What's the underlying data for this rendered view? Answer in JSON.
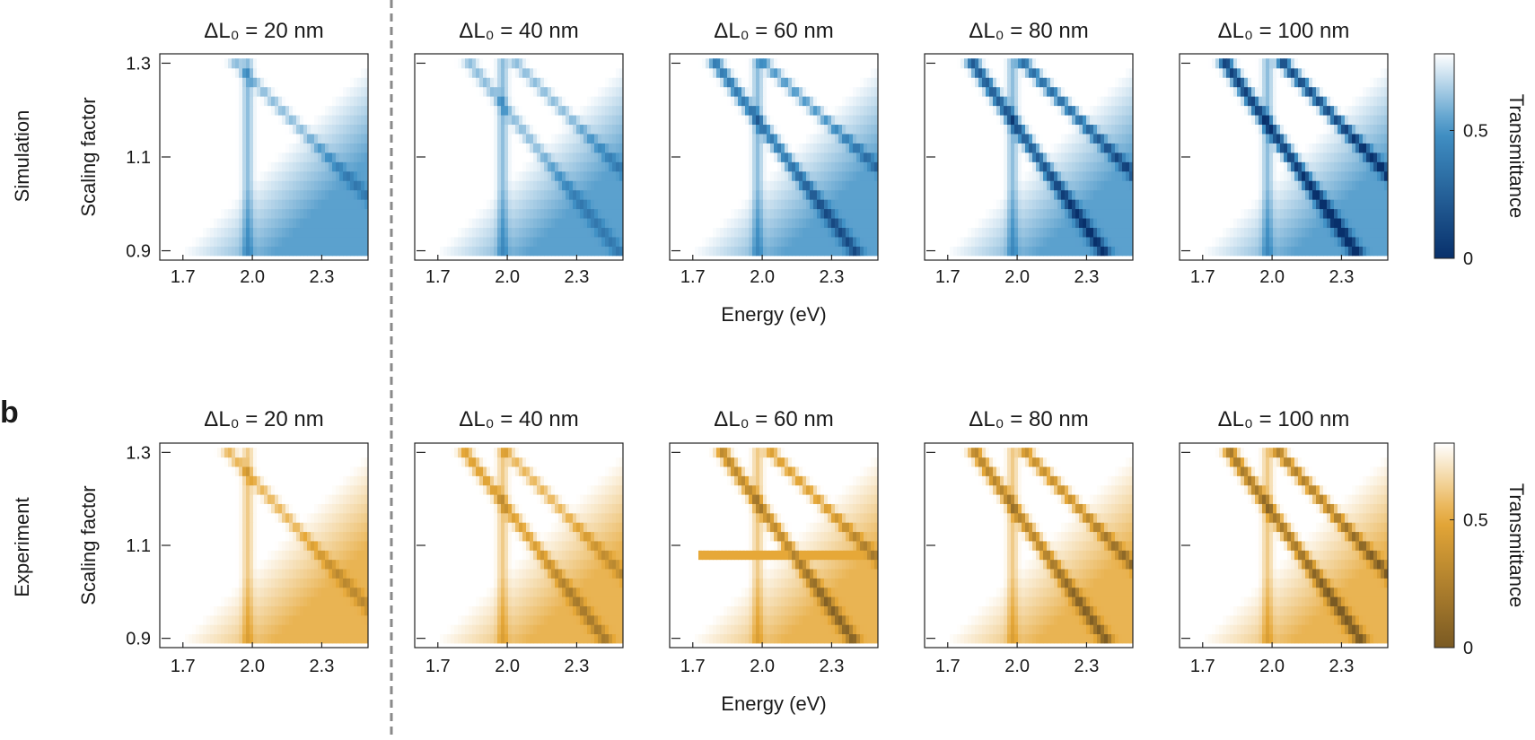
{
  "figure": {
    "panel_b_label": "b",
    "divider_style": "dashed-vertical"
  },
  "chart_data": [
    {
      "type": "heatmap",
      "row": "Simulation",
      "row_label": "Simulation",
      "colormap": "blue",
      "colors": {
        "low": "#08306b",
        "mid": "#4292c6",
        "high": "#ffffff"
      },
      "ylabel": "Scaling factor",
      "xlabel": "Energy (eV)",
      "colorbar_label": "Transmittance",
      "colorbar_ticks": [
        "0",
        "0.5"
      ],
      "colorbar_range": [
        0,
        0.8
      ],
      "xlim": [
        1.6,
        2.5
      ],
      "ylim": [
        0.88,
        1.32
      ],
      "xticks": [
        "1.7",
        "2.0",
        "2.3"
      ],
      "yticks": [
        "0.9",
        "1.1",
        "1.3"
      ],
      "scaling_factors": [
        0.9,
        0.92,
        0.94,
        0.96,
        0.98,
        1.0,
        1.02,
        1.04,
        1.06,
        1.08,
        1.1,
        1.12,
        1.14,
        1.16,
        1.18,
        1.2,
        1.22,
        1.24,
        1.26,
        1.28,
        1.3
      ],
      "exciton_energy_eV": 1.98,
      "panels": [
        {
          "title": "ΔL₀ = 20 nm",
          "delta_L0_nm": 20,
          "modes": [
            {
              "energy_at_1_3": 1.93,
              "slope": 2.0,
              "min_T": 0.62
            }
          ],
          "band_energy_at_1_3": 2.17,
          "band_min_T": 0.42
        },
        {
          "title": "ΔL₀ = 40 nm",
          "delta_L0_nm": 40,
          "modes": [
            {
              "energy_at_1_3": 1.84,
              "slope": 1.6,
              "min_T": 0.62
            },
            {
              "energy_at_1_3": 2.04,
              "slope": 2.0,
              "min_T": 0.62
            }
          ],
          "band_energy_at_1_3": 2.12,
          "band_min_T": 0.46
        },
        {
          "title": "ΔL₀ = 60 nm",
          "delta_L0_nm": 60,
          "modes": [
            {
              "energy_at_1_3": 1.8,
              "slope": 1.5,
              "min_T": 0.38
            },
            {
              "energy_at_1_3": 2.01,
              "slope": 2.2,
              "min_T": 0.52
            }
          ],
          "band_energy_at_1_3": 2.14,
          "band_min_T": 0.52
        },
        {
          "title": "ΔL₀ = 80 nm",
          "delta_L0_nm": 80,
          "modes": [
            {
              "energy_at_1_3": 1.81,
              "slope": 1.4,
              "min_T": 0.22
            },
            {
              "energy_at_1_3": 2.03,
              "slope": 2.0,
              "min_T": 0.32
            }
          ],
          "band_energy_at_1_3": 2.16,
          "band_min_T": 0.56
        },
        {
          "title": "ΔL₀ = 100 nm",
          "delta_L0_nm": 100,
          "modes": [
            {
              "energy_at_1_3": 1.8,
              "slope": 1.4,
              "min_T": 0.08
            },
            {
              "energy_at_1_3": 2.05,
              "slope": 1.9,
              "min_T": 0.14
            }
          ],
          "band_energy_at_1_3": 2.18,
          "band_min_T": 0.58
        }
      ]
    },
    {
      "type": "heatmap",
      "row": "Experiment",
      "row_label": "Experiment",
      "colormap": "orange",
      "colors": {
        "low": "#7a5a23",
        "mid": "#e6a838",
        "high": "#ffffff"
      },
      "ylabel": "Scaling factor",
      "xlabel": "Energy (eV)",
      "colorbar_label": "Transmittance",
      "colorbar_ticks": [
        "0",
        "0.5"
      ],
      "colorbar_range": [
        0,
        0.8
      ],
      "xlim": [
        1.6,
        2.5
      ],
      "ylim": [
        0.88,
        1.32
      ],
      "xticks": [
        "1.7",
        "2.0",
        "2.3"
      ],
      "yticks": [
        "0.9",
        "1.1",
        "1.3"
      ],
      "scaling_factors": [
        0.9,
        0.92,
        0.94,
        0.96,
        0.98,
        1.0,
        1.02,
        1.04,
        1.06,
        1.08,
        1.1,
        1.12,
        1.14,
        1.16,
        1.18,
        1.2,
        1.22,
        1.24,
        1.26,
        1.28,
        1.3
      ],
      "exciton_energy_eV": 1.98,
      "panels": [
        {
          "title": "ΔL₀ = 20 nm",
          "delta_L0_nm": 20,
          "modes": [
            {
              "energy_at_1_3": 1.9,
              "slope": 1.8,
              "min_T": 0.55
            }
          ],
          "band_energy_at_1_3": 2.05,
          "band_min_T": 0.55
        },
        {
          "title": "ΔL₀ = 40 nm",
          "delta_L0_nm": 40,
          "modes": [
            {
              "energy_at_1_3": 1.82,
              "slope": 1.5,
              "min_T": 0.45
            },
            {
              "energy_at_1_3": 2.0,
              "slope": 1.9,
              "min_T": 0.55
            }
          ],
          "band_energy_at_1_3": 2.08,
          "band_min_T": 0.55
        },
        {
          "title": "ΔL₀ = 60 nm",
          "delta_L0_nm": 60,
          "modes": [
            {
              "energy_at_1_3": 1.83,
              "slope": 1.4,
              "min_T": 0.3
            },
            {
              "energy_at_1_3": 2.04,
              "slope": 2.0,
              "min_T": 0.45
            }
          ],
          "band_energy_at_1_3": 2.12,
          "band_min_T": 0.6,
          "artifact_row_scaling_factor": 1.08
        },
        {
          "title": "ΔL₀ = 80 nm",
          "delta_L0_nm": 80,
          "modes": [
            {
              "energy_at_1_3": 1.82,
              "slope": 1.4,
              "min_T": 0.28
            },
            {
              "energy_at_1_3": 2.04,
              "slope": 1.9,
              "min_T": 0.35
            }
          ],
          "band_energy_at_1_3": 2.14,
          "band_min_T": 0.62
        },
        {
          "title": "ΔL₀ = 100 nm",
          "delta_L0_nm": 100,
          "modes": [
            {
              "energy_at_1_3": 1.82,
              "slope": 1.4,
              "min_T": 0.2
            },
            {
              "energy_at_1_3": 2.03,
              "slope": 1.8,
              "min_T": 0.25
            }
          ],
          "band_energy_at_1_3": 2.15,
          "band_min_T": 0.62
        }
      ]
    }
  ]
}
